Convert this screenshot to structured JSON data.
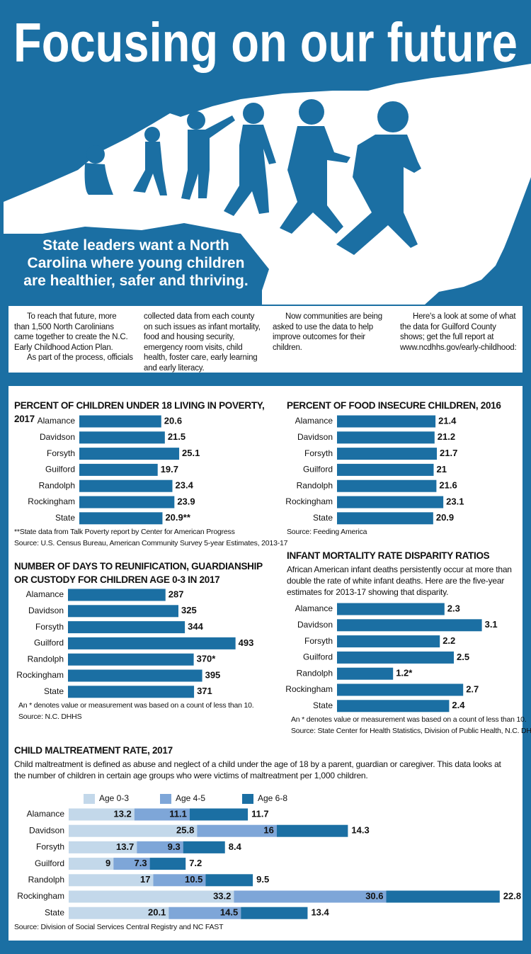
{
  "header": {
    "title": "Focusing on our future",
    "subtitle": "State leaders want a North Carolina where young children are healthier, safer and thriving."
  },
  "intro": {
    "columns": [
      [
        "To reach that future, more than 1,500 North Carolinians came together to create the N.C. Early Childhood Action Plan.",
        "As part of the process, officials"
      ],
      [
        "collected data from each county on such issues as infant mortality, food and housing security, emergency room visits, child health, foster care, early learning and early literacy."
      ],
      [
        "Now communities are being asked to use the data to help improve outcomes for their children."
      ],
      [
        "Here's a look at some of what the data for Guilford County shows; get the full report at www.ncdhhs.gov/early-childhood:"
      ]
    ]
  },
  "chart_data": [
    {
      "type": "bar",
      "title": "PERCENT OF CHILDREN UNDER 18 LIVING IN POVERTY, 2017",
      "categories": [
        "Alamance",
        "Davidson",
        "Forsyth",
        "Guilford",
        "Randolph",
        "Rockingham",
        "State"
      ],
      "values": [
        20.6,
        21.5,
        25.1,
        19.7,
        23.4,
        23.9,
        20.9
      ],
      "value_labels": [
        "20.6",
        "21.5",
        "25.1",
        "19.7",
        "23.4",
        "23.9",
        "20.9**"
      ],
      "color": "#1b6fa3",
      "notes": [
        "**State data from Talk Poverty report by Center for American Progress",
        "Source: U.S. Census Bureau, American Community Survey 5-year Estimates, 2013-17"
      ]
    },
    {
      "type": "bar",
      "title": "PERCENT OF FOOD INSECURE CHILDREN, 2016",
      "categories": [
        "Alamance",
        "Davidson",
        "Forsyth",
        "Guilford",
        "Randolph",
        "Rockingham",
        "State"
      ],
      "values": [
        21.4,
        21.2,
        21.7,
        21,
        21.6,
        23.1,
        20.9
      ],
      "color": "#1b6fa3",
      "notes": [
        "Source: Feeding America"
      ]
    },
    {
      "type": "bar",
      "title": "NUMBER OF DAYS TO REUNIFICATION, GUARDIANSHIP OR CUSTODY FOR CHILDREN AGE 0-3 IN 2017",
      "categories": [
        "Alamance",
        "Davidson",
        "Forsyth",
        "Guilford",
        "Randolph",
        "Rockingham",
        "State"
      ],
      "values": [
        287,
        325,
        344,
        493,
        370,
        395,
        371
      ],
      "value_labels": [
        "287",
        "325",
        "344",
        "493",
        "370*",
        "395",
        "371"
      ],
      "color": "#1b6fa3",
      "notes": [
        "An * denotes value or measurement was based on a count of less than 10.",
        "Source: N.C. DHHS"
      ]
    },
    {
      "type": "bar",
      "title": "INFANT MORTALITY RATE DISPARITY RATIOS",
      "description": "African American infant deaths persistently occur at more than double the rate of white infant deaths. Here are the five-year estimates for 2013-17 showing that disparity.",
      "categories": [
        "Alamance",
        "Davidson",
        "Forsyth",
        "Guilford",
        "Randolph",
        "Rockingham",
        "State"
      ],
      "values": [
        2.3,
        3.1,
        2.2,
        2.5,
        1.2,
        2.7,
        2.4
      ],
      "value_labels": [
        "2.3",
        "3.1",
        "2.2",
        "2.5",
        "1.2*",
        "2.7",
        "2.4"
      ],
      "color": "#1b6fa3",
      "notes": [
        "An * denotes value or measurement was based on a count of less than 10.",
        "Source: State Center for Health Statistics, Division of Public Health, N.C. DHHS"
      ]
    },
    {
      "type": "bar",
      "title": "CHILD MALTREATMENT RATE, 2017",
      "description": "Child maltreatment is defined as abuse and neglect of a child under the age of 18 by a parent, guardian or caregiver.  This data looks at the number of children in certain age groups who were victims of maltreatment per 1,000 children.",
      "categories": [
        "Alamance",
        "Davidson",
        "Forsyth",
        "Guilford",
        "Randolph",
        "Rockingham",
        "State"
      ],
      "series": [
        {
          "name": "Age 0-3",
          "color": "#c3d8ea",
          "values": [
            13.2,
            25.8,
            13.7,
            9,
            17,
            33.2,
            20.1
          ]
        },
        {
          "name": "Age 4-5",
          "color": "#7ea6d8",
          "values": [
            11.1,
            16,
            9.3,
            7.3,
            10.5,
            30.6,
            14.5
          ]
        },
        {
          "name": "Age 6-8",
          "color": "#1b6fa3",
          "values": [
            11.7,
            14.3,
            8.4,
            7.2,
            9.5,
            22.8,
            13.4
          ]
        }
      ],
      "notes": [
        "Source: Division of Social Services Central Registry and NC FAST"
      ]
    }
  ]
}
